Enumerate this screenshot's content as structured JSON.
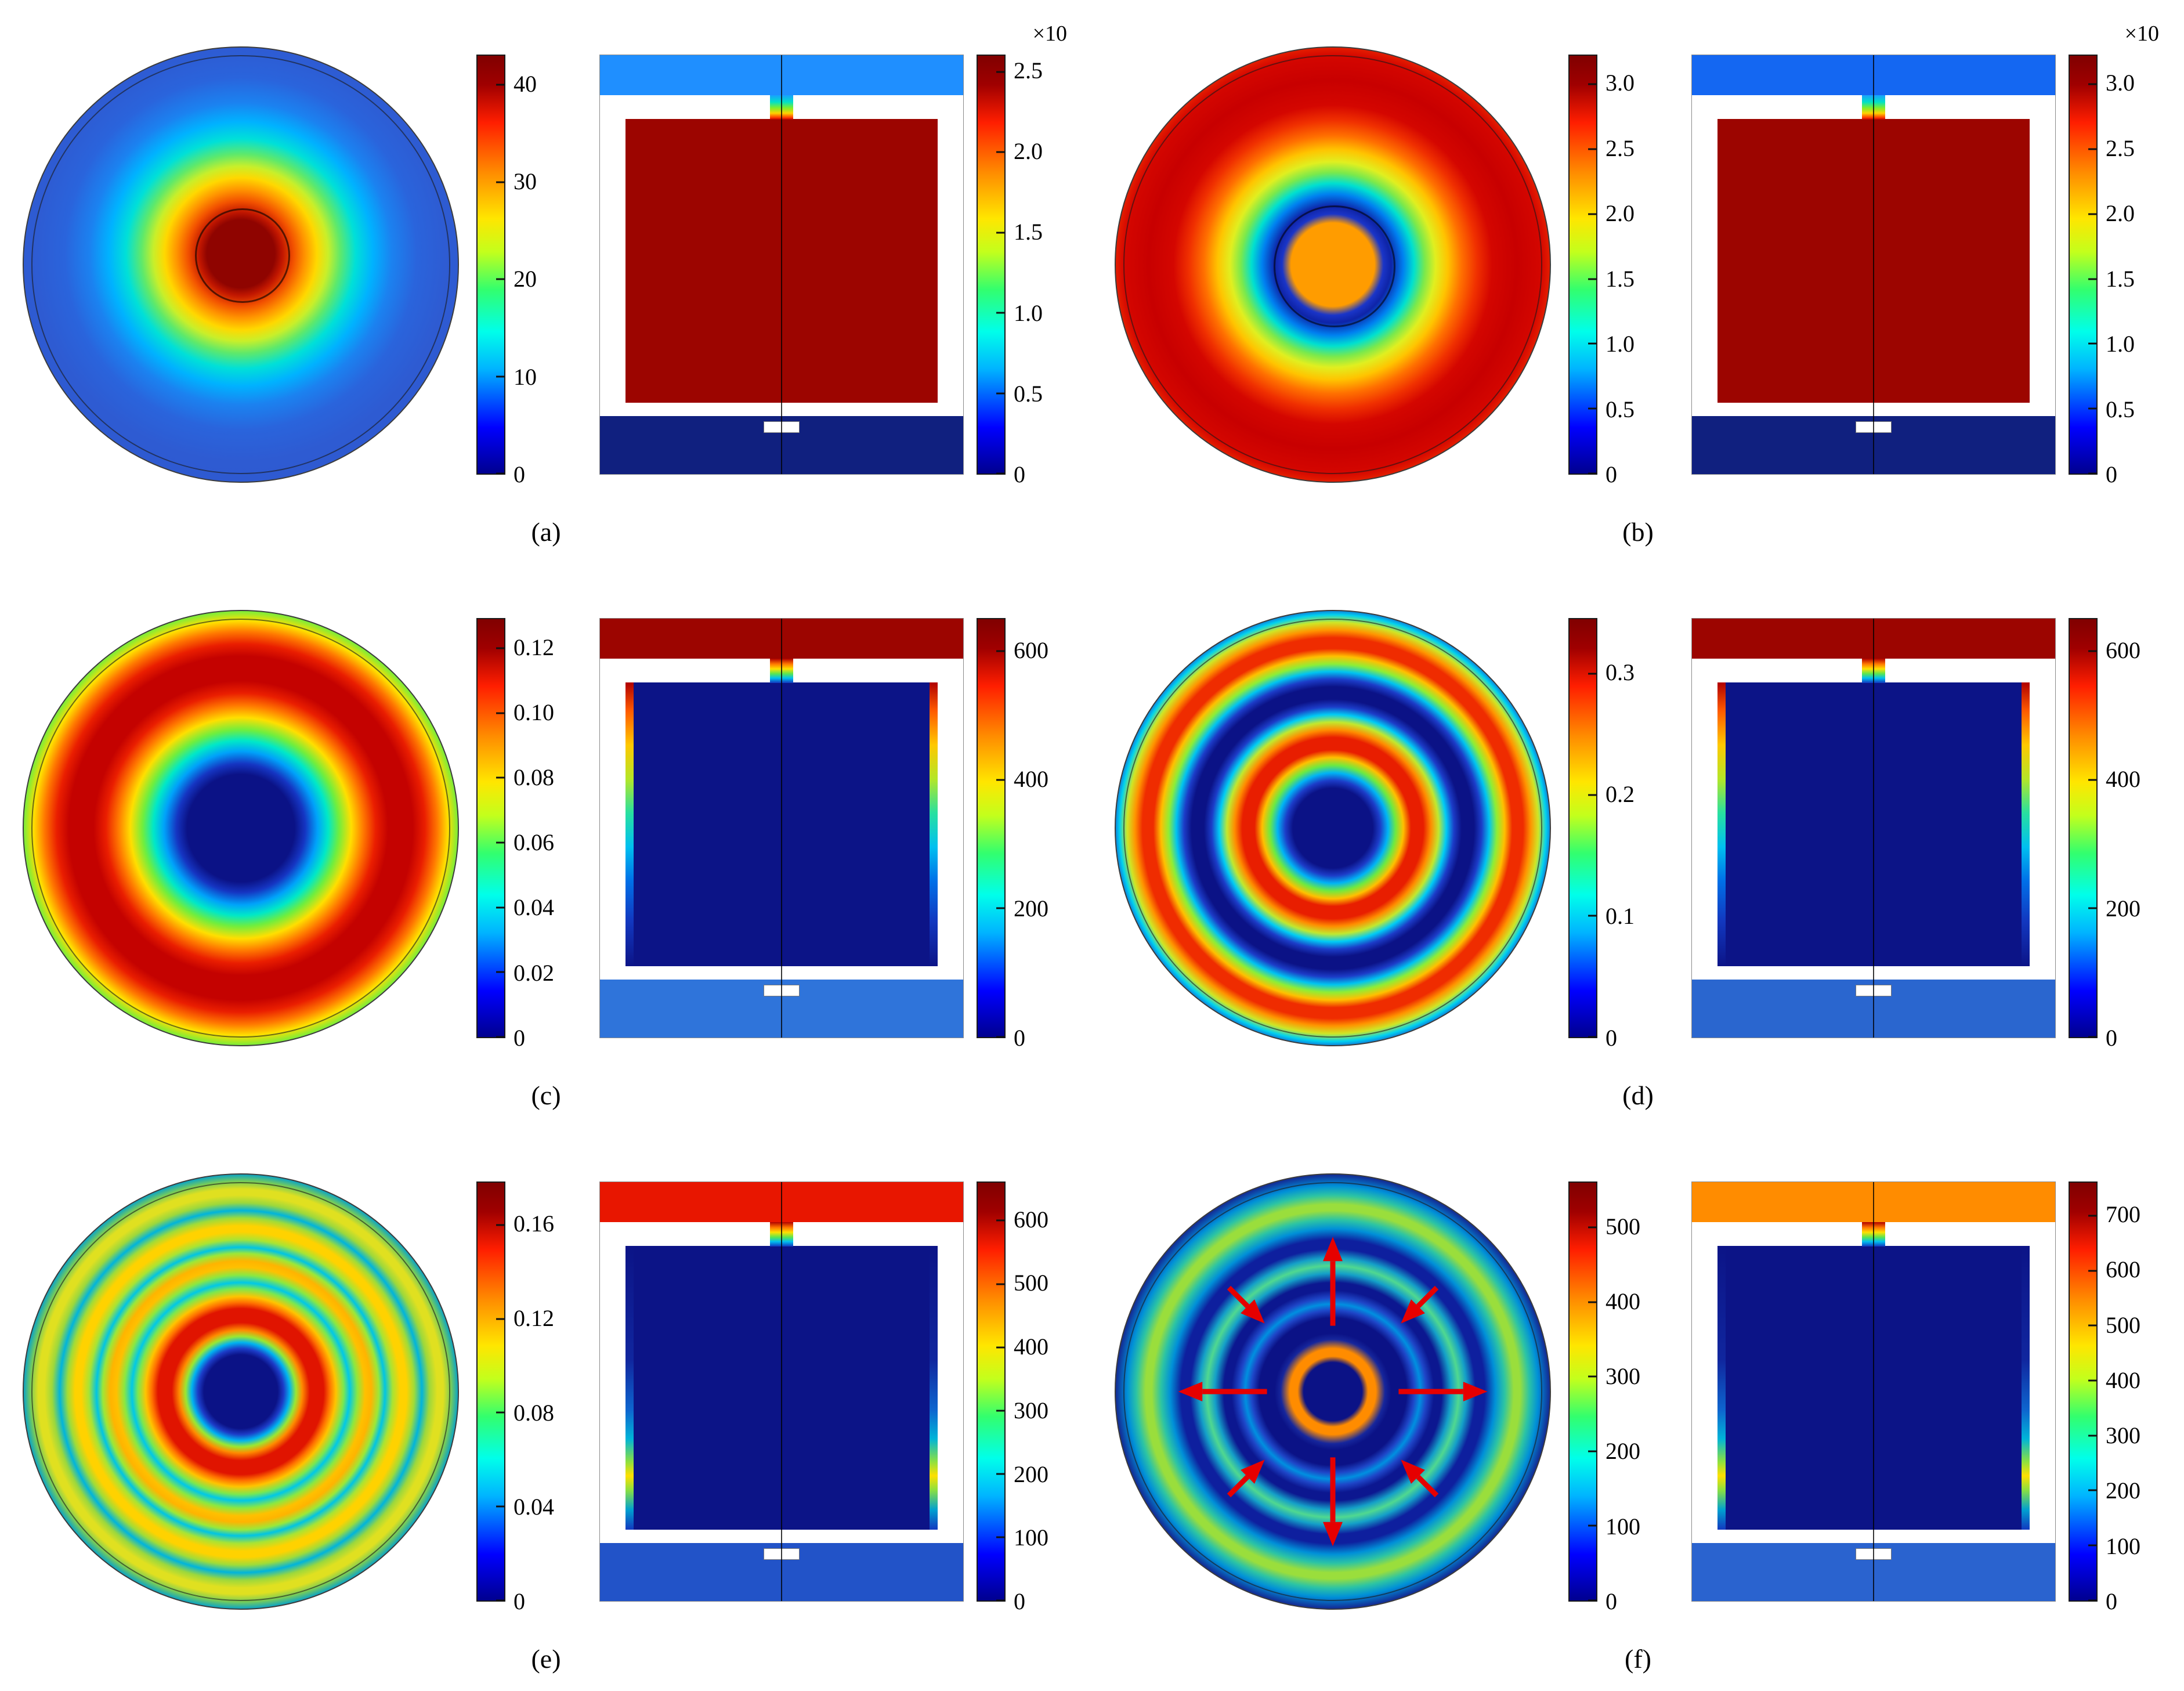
{
  "figure": {
    "description": "Six-panel COMSOL-style plasma reactor simulation figure; each panel shows a circular top-view field map with its colorbar and an axisymmetric cross-section field map with its colorbar.",
    "colormap": {
      "name": "jet",
      "low": "#00008f",
      "mid": "#00ffea",
      "high": "#800000"
    },
    "panels": [
      {
        "id": "a",
        "label": "(a)",
        "circle_cb": {
          "ticks": [
            "40",
            "30",
            "20",
            "10",
            "0"
          ],
          "vmax": 43,
          "multiplier": ""
        },
        "square_cb": {
          "ticks": [
            "2.5",
            "2.0",
            "1.5",
            "1.0",
            "0.5",
            "0"
          ],
          "vmax": 2.6,
          "multiplier": "×10"
        },
        "square": {
          "top": "#1f8fff",
          "main": "#9c0500",
          "bottom": "#10207f",
          "strip": "none",
          "notch": "cold-to-hot"
        }
      },
      {
        "id": "b",
        "label": "(b)",
        "circle_cb": {
          "ticks": [
            "3.0",
            "2.5",
            "2.0",
            "1.5",
            "1.0",
            "0.5",
            "0"
          ],
          "vmax": 3.22,
          "multiplier": ""
        },
        "square_cb": {
          "ticks": [
            "3.0",
            "2.5",
            "2.0",
            "1.5",
            "1.0",
            "0.5",
            "0"
          ],
          "vmax": 3.22,
          "multiplier": "×10"
        },
        "square": {
          "top": "#1467f2",
          "main": "#9c0500",
          "bottom": "#10207f",
          "strip": "none",
          "notch": "cold-to-hot"
        }
      },
      {
        "id": "c",
        "label": "(c)",
        "circle_cb": {
          "ticks": [
            "0.12",
            "0.10",
            "0.08",
            "0.06",
            "0.04",
            "0.02",
            "0"
          ],
          "vmax": 0.129,
          "multiplier": ""
        },
        "square_cb": {
          "ticks": [
            "600",
            "400",
            "200",
            "0"
          ],
          "vmax": 650,
          "multiplier": ""
        },
        "square": {
          "top": "#9c0500",
          "main": "#0c1487",
          "bottom": "#2f74da",
          "strip": "rainbow",
          "notch": "hot-to-cold"
        }
      },
      {
        "id": "d",
        "label": "(d)",
        "circle_cb": {
          "ticks": [
            "0.3",
            "0.2",
            "0.1",
            "0"
          ],
          "vmax": 0.345,
          "multiplier": ""
        },
        "square_cb": {
          "ticks": [
            "600",
            "400",
            "200",
            "0"
          ],
          "vmax": 650,
          "multiplier": ""
        },
        "square": {
          "top": "#9c0500",
          "main": "#0c1487",
          "bottom": "#2a66cf",
          "strip": "rainbow",
          "notch": "hot-to-cold"
        }
      },
      {
        "id": "e",
        "label": "(e)",
        "circle_cb": {
          "ticks": [
            "0.16",
            "0.12",
            "0.08",
            "0.04",
            "0"
          ],
          "vmax": 0.178,
          "multiplier": ""
        },
        "square_cb": {
          "ticks": [
            "600",
            "500",
            "400",
            "300",
            "200",
            "100",
            "0"
          ],
          "vmax": 660,
          "multiplier": ""
        },
        "square": {
          "top": "#e81600",
          "main": "#0c1487",
          "bottom": "#2253c8",
          "strip": "spot",
          "notch": "hot-to-cold"
        }
      },
      {
        "id": "f",
        "label": "(f)",
        "circle_cb": {
          "ticks": [
            "500",
            "400",
            "300",
            "200",
            "100",
            "0"
          ],
          "vmax": 560,
          "multiplier": ""
        },
        "square_cb": {
          "ticks": [
            "700",
            "600",
            "500",
            "400",
            "300",
            "200",
            "100",
            "0"
          ],
          "vmax": 760,
          "multiplier": ""
        },
        "square": {
          "top": "#ff8c00",
          "main": "#0c1487",
          "bottom": "#2a63cf",
          "strip": "spot",
          "notch": "hot-to-cold"
        }
      }
    ]
  },
  "chart_data": [
    {
      "panel": "a",
      "plots": [
        {
          "type": "heatmap",
          "geometry": "disk-top-view",
          "colormap": "jet",
          "vmin": 0,
          "vmax": 43,
          "colorbar_ticks": [
            0,
            10,
            20,
            30,
            40
          ],
          "pattern": "Centered hot spot: dark-red core disc (~0.2 R, value ~43) decreasing radially through orange, yellow, green and cyan to uniform mid-blue (~5) at the rim; thin black circles outline the core and the chamber edge."
        },
        {
          "type": "heatmap",
          "geometry": "axisymmetric-cross-section",
          "colormap": "jet",
          "scale_multiplier": "×10",
          "vmin": 0,
          "vmax": 2.6,
          "colorbar_ticks": [
            0,
            0.5,
            1.0,
            1.5,
            2.0,
            2.5
          ],
          "pattern": "Chamber volume uniformly dark red (~2.5×10); bright-blue showerhead band across the top; dark-blue band at the bottom; rainbow gradient in the narrow inlet notch at top center; white walls; thin vertical symmetry axis."
        }
      ]
    },
    {
      "panel": "b",
      "plots": [
        {
          "type": "heatmap",
          "geometry": "disk-top-view",
          "colormap": "jet",
          "vmin": 0,
          "vmax": 3.2,
          "colorbar_ticks": [
            0,
            0.5,
            1.0,
            1.5,
            2.0,
            2.5,
            3.0
          ],
          "pattern": "Standing-wave rings: orange center disc (~2.8) with black outline, dark-blue ring around it, then a broad bright-red annulus (~3.0) near 0.6 R decaying through yellow, green and cyan to a dark-blue rim."
        },
        {
          "type": "heatmap",
          "geometry": "axisymmetric-cross-section",
          "colormap": "jet",
          "scale_multiplier": "×10",
          "vmin": 0,
          "vmax": 3.2,
          "colorbar_ticks": [
            0,
            0.5,
            1.0,
            1.5,
            2.0,
            2.5,
            3.0
          ],
          "pattern": "Uniform dark-red chamber (~3.0×10); blue top showerhead band; dark-blue bottom band; rainbow inlet notch at top center; white walls; vertical symmetry axis."
        }
      ]
    },
    {
      "panel": "c",
      "plots": [
        {
          "type": "heatmap",
          "geometry": "disk-top-view",
          "colormap": "jet",
          "vmin": 0,
          "vmax": 0.129,
          "colorbar_ticks": [
            0,
            0.02,
            0.04,
            0.06,
            0.08,
            0.1,
            0.12
          ],
          "pattern": "Single thick bright-red annulus (~0.12) centered near 0.5 R with jet-gradient shoulders (yellow-green-cyan) on both sides; dark-blue center disc and dark-blue rim."
        },
        {
          "type": "heatmap",
          "geometry": "axisymmetric-cross-section",
          "colormap": "jet",
          "vmin": 0,
          "vmax": 650,
          "colorbar_ticks": [
            0,
            200,
            400,
            600
          ],
          "pattern": "Dark-red top band (~650); interior dark blue (~0); vertical rainbow sheath strips along left and right walls running red (top) to blue (bottom); lighter-blue bottom band; rainbow inlet notch; white walls."
        }
      ]
    },
    {
      "panel": "d",
      "plots": [
        {
          "type": "heatmap",
          "geometry": "disk-top-view",
          "colormap": "jet",
          "vmin": 0,
          "vmax": 0.345,
          "colorbar_ticks": [
            0,
            0.1,
            0.2,
            0.3
          ],
          "pattern": "Three concentric bright rings separated by dark-blue gaps: red ring close to the center (~0.33), red-orange middle ring, broad yellow-orange outer ring; dark-blue center and rim."
        },
        {
          "type": "heatmap",
          "geometry": "axisymmetric-cross-section",
          "colormap": "jet",
          "vmin": 0,
          "vmax": 650,
          "colorbar_ticks": [
            0,
            200,
            400,
            600
          ],
          "pattern": "Dark-red top band; dark-blue interior; rainbow sheath strips on the side walls; medium-blue bottom band; white substrate block at bottom center."
        }
      ]
    },
    {
      "panel": "e",
      "plots": [
        {
          "type": "heatmap",
          "geometry": "disk-top-view",
          "colormap": "jet",
          "vmin": 0,
          "vmax": 0.178,
          "colorbar_ticks": [
            0,
            0.04,
            0.08,
            0.12,
            0.16
          ],
          "pattern": "About five concentric rings of decreasing intensity: innermost thick red ring (~0.17), then orange, yellow, yellow-green and green-cyan rings separated by cyan/blue gaps; dark-blue center and rim."
        },
        {
          "type": "heatmap",
          "geometry": "axisymmetric-cross-section",
          "colormap": "jet",
          "vmin": 0,
          "vmax": 660,
          "colorbar_ticks": [
            0,
            100,
            200,
            300,
            400,
            500,
            600
          ],
          "pattern": "Bright-red top band (~650); dark-blue interior; small yellow-green hot spots on the lower side walls; blue bottom band with white substrate block."
        }
      ]
    },
    {
      "panel": "f",
      "plots": [
        {
          "type": "heatmap",
          "geometry": "disk-top-view",
          "colormap": "jet",
          "vmin": 0,
          "vmax": 560,
          "colorbar_ticks": [
            0,
            100,
            200,
            300,
            400,
            500
          ],
          "annotations": "Eight red flow arrows: four long arrows pointing radially outward at N, S, E and W, and four short diagonal arrows pointing inward at NE, NW, SE and SW.",
          "pattern": "Mostly dark blue with faint cyan-green concentric rings; bright orange annulus immediately around the dark-blue center disc; broad green-cyan ring with yellow-green arcs near 0.6 R."
        },
        {
          "type": "heatmap",
          "geometry": "axisymmetric-cross-section",
          "colormap": "jet",
          "vmin": 0,
          "vmax": 760,
          "colorbar_ticks": [
            0,
            100,
            200,
            300,
            400,
            500,
            600,
            700
          ],
          "pattern": "Orange top band (~700); dark-blue interior; yellow-green spots on the lower side walls; blue bottom band with white substrate block."
        }
      ]
    }
  ]
}
